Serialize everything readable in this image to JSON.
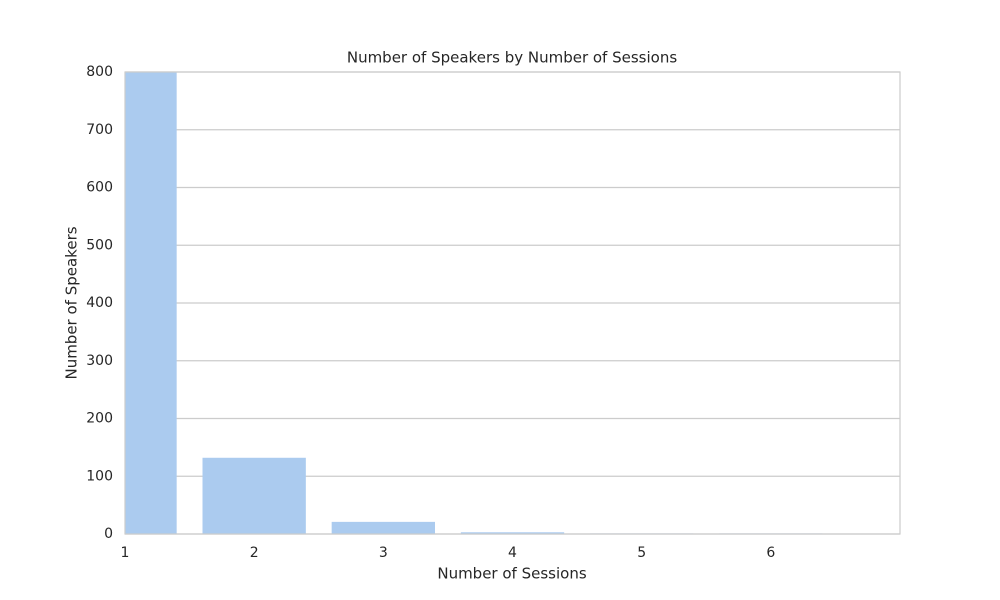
{
  "chart_data": {
    "type": "bar",
    "title": "Number of Speakers by Number of Sessions",
    "x_label": "Number of Sessions",
    "y_label": "Number of Speakers",
    "categories": [
      "1",
      "2",
      "3",
      "4",
      "5",
      "6"
    ],
    "values": [
      800,
      132,
      21,
      3,
      1,
      1
    ],
    "color": "#abcbef",
    "ylim": [
      0,
      800
    ],
    "yticks": [
      0,
      100,
      200,
      300,
      400,
      500,
      600,
      700,
      800
    ],
    "grid": true
  }
}
